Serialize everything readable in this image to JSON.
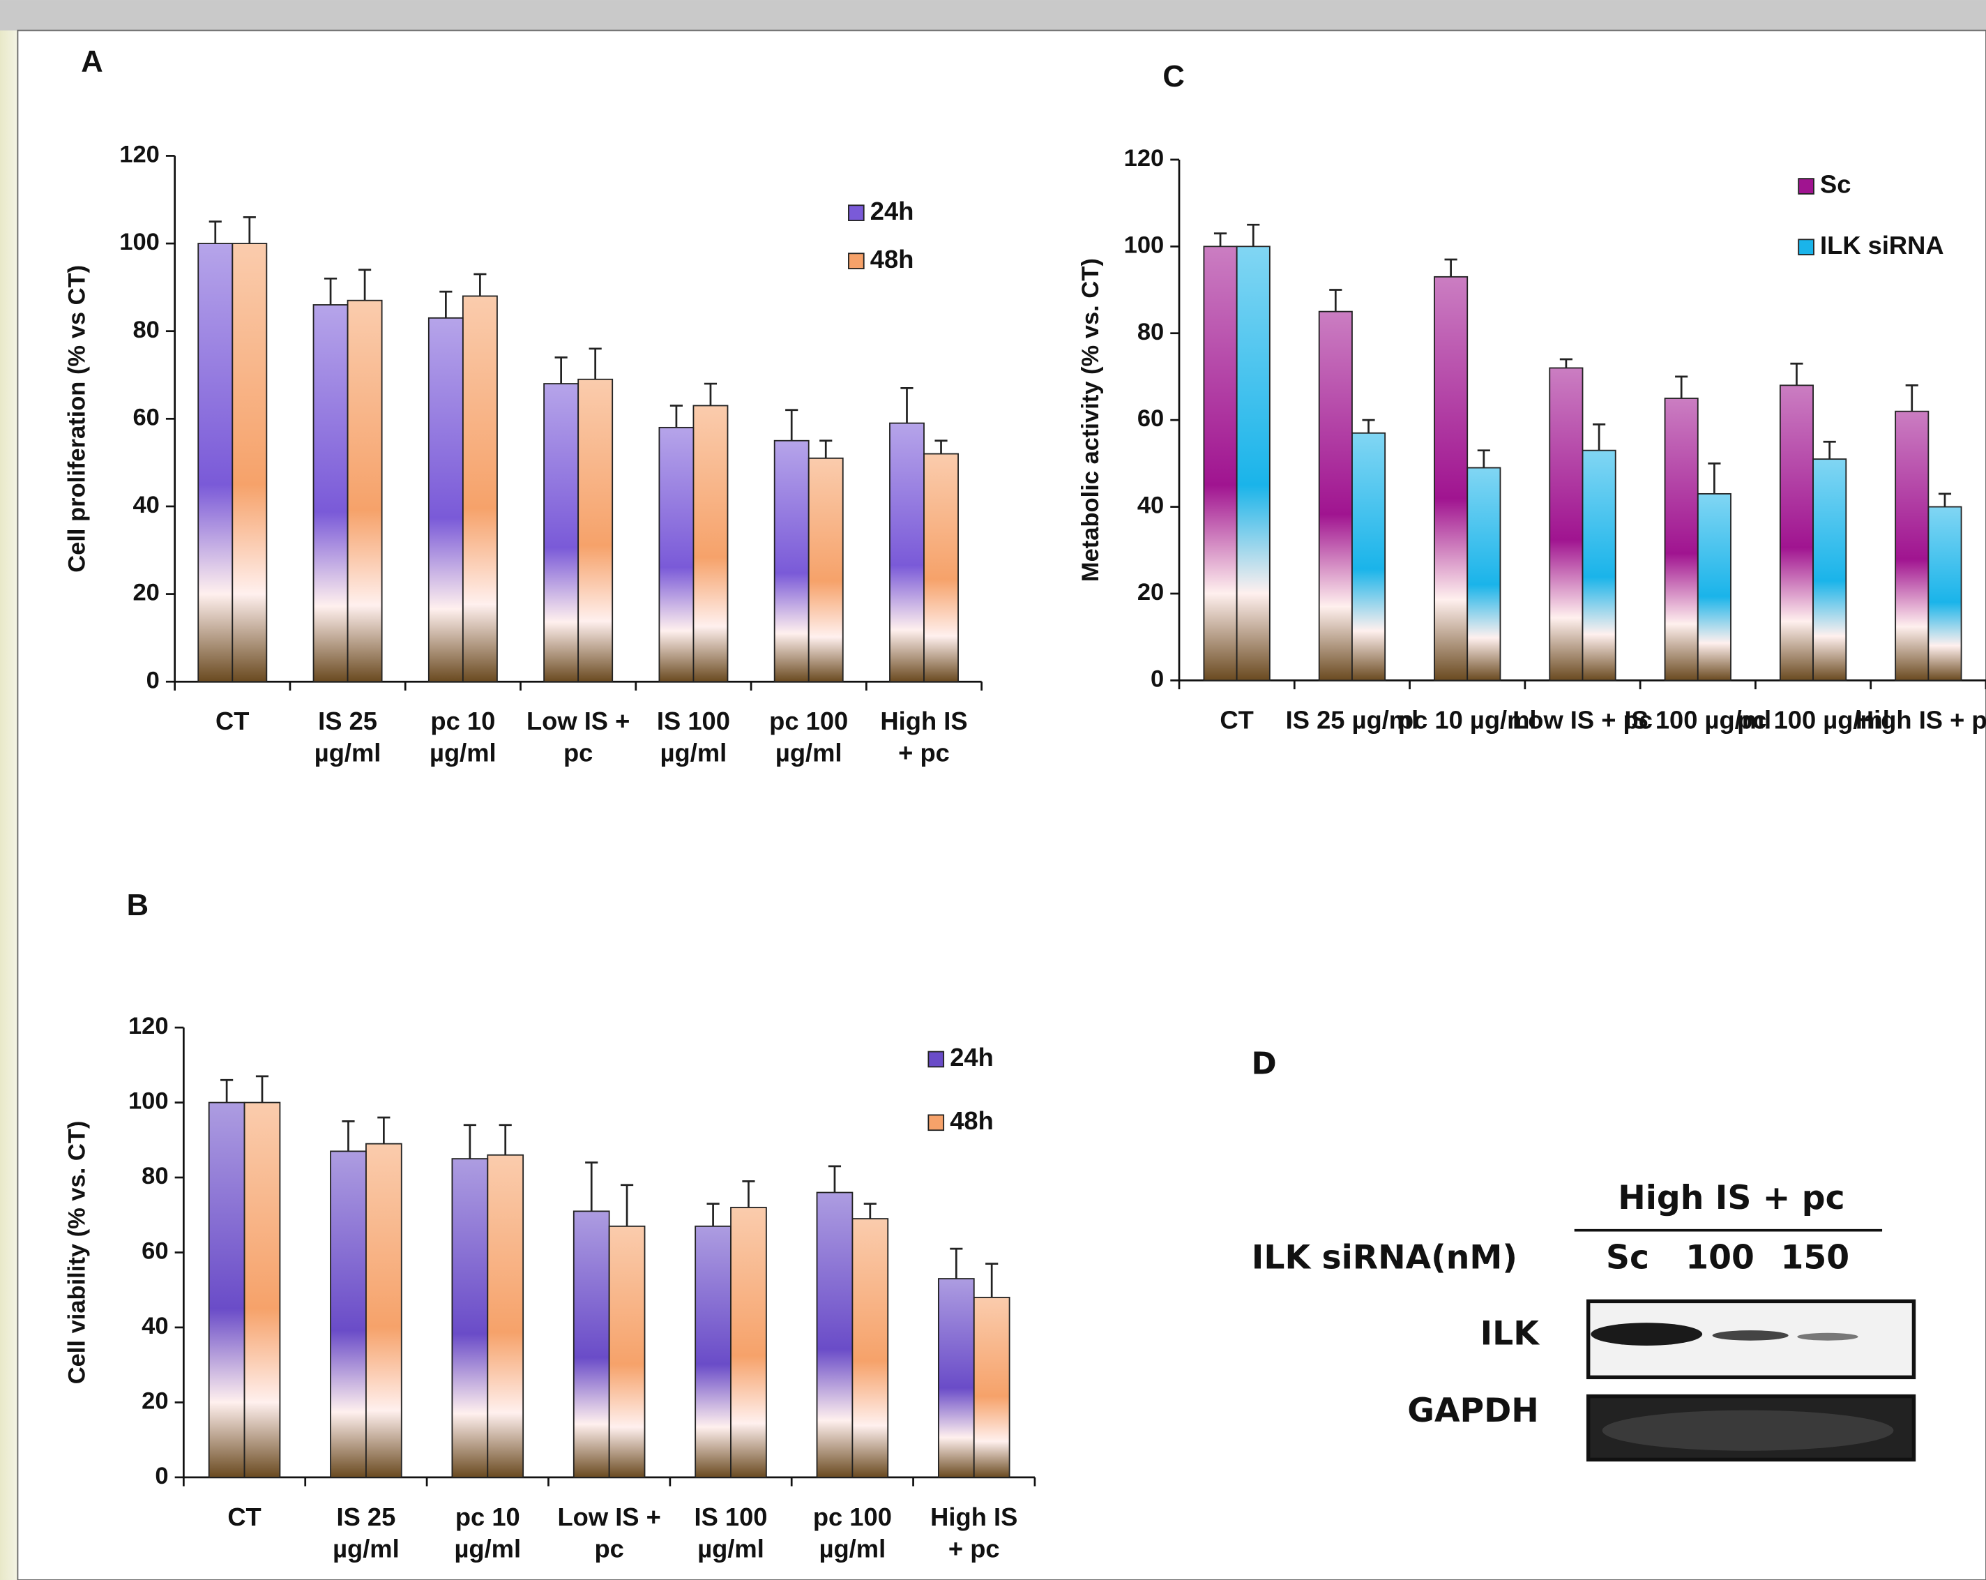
{
  "chart_data": [
    {
      "type": "bar",
      "label": "A",
      "y_label": "Cell proliferation  (% vs CT)",
      "categories": [
        "CT",
        "IS 25 µg/ml",
        "pc 10 µg/ml",
        "Low IS + pc",
        "IS 100 µg/ml",
        "pc 100 µg/ml",
        "High IS + pc"
      ],
      "series": [
        {
          "name": "24h",
          "color": "#7a5ad8",
          "values": [
            100,
            86,
            83,
            68,
            58,
            55,
            59
          ],
          "errors": [
            5,
            6,
            6,
            6,
            5,
            7,
            8
          ]
        },
        {
          "name": "48h",
          "color": "#f6a26a",
          "values": [
            100,
            87,
            88,
            69,
            63,
            51,
            52
          ],
          "errors": [
            6,
            7,
            5,
            7,
            5,
            4,
            3
          ]
        }
      ],
      "ylim": [
        0,
        120
      ],
      "yticks": [
        0,
        20,
        40,
        60,
        80,
        100,
        120
      ],
      "legend": "upper right"
    },
    {
      "type": "bar",
      "label": "B",
      "y_label": "Cell viability (% vs. CT)",
      "categories": [
        "CT",
        "IS 25 µg/ml",
        "pc 10 µg/ml",
        "Low IS + pc",
        "IS 100 µg/ml",
        "pc 100 µg/ml",
        "High IS + pc"
      ],
      "series": [
        {
          "name": "24h",
          "color": "#6a4cc8",
          "values": [
            100,
            87,
            85,
            71,
            67,
            76,
            53
          ],
          "errors": [
            6,
            8,
            9,
            13,
            6,
            7,
            8
          ]
        },
        {
          "name": "48h",
          "color": "#f6a26a",
          "values": [
            100,
            89,
            86,
            67,
            72,
            69,
            48
          ],
          "errors": [
            7,
            7,
            8,
            11,
            7,
            4,
            9
          ]
        }
      ],
      "ylim": [
        0,
        120
      ],
      "yticks": [
        0,
        20,
        40,
        60,
        80,
        100,
        120
      ],
      "legend": "upper right"
    },
    {
      "type": "bar",
      "label": "C",
      "y_label": "Metabolic activity (% vs. CT)",
      "categories": [
        "CT",
        "IS 25 µg/ml",
        "pc 10 µg/ml",
        "Low IS + pc",
        "IS 100 µg/ml",
        "pc 100 µg/ml",
        "High IS + pc"
      ],
      "series": [
        {
          "name": "Sc",
          "color": "#a01490",
          "values": [
            100,
            85,
            93,
            72,
            65,
            68,
            62
          ],
          "errors": [
            3,
            5,
            4,
            2,
            5,
            5,
            6
          ]
        },
        {
          "name": "ILK siRNA",
          "color": "#1ab4ea",
          "values": [
            100,
            57,
            49,
            53,
            43,
            51,
            40
          ],
          "errors": [
            5,
            3,
            4,
            6,
            7,
            4,
            3
          ]
        }
      ],
      "ylim": [
        0,
        120
      ],
      "yticks": [
        0,
        20,
        40,
        60,
        80,
        100,
        120
      ],
      "legend": "upper right"
    }
  ],
  "panel_d": {
    "label": "D",
    "header": "High IS + pc",
    "row_title": "ILK siRNA(nM)",
    "lanes": [
      "Sc",
      "100",
      "150"
    ],
    "bands": [
      "ILK",
      "GAPDH"
    ]
  }
}
